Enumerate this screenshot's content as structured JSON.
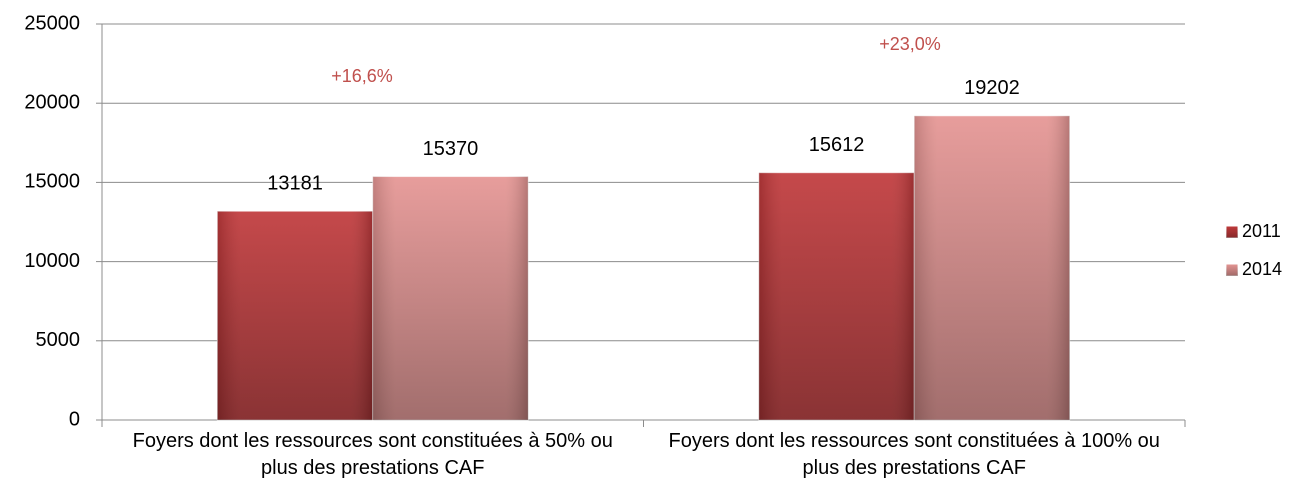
{
  "chart_data": {
    "type": "bar",
    "categories": [
      "Foyers dont les ressources sont constituées à 50% ou plus des prestations CAF",
      "Foyers dont les ressources sont constituées à 100% ou plus des prestations CAF"
    ],
    "series": [
      {
        "name": "2011",
        "color": "#c0393b",
        "values": [
          13181,
          15612
        ]
      },
      {
        "name": "2014",
        "color": "#e59593",
        "values": [
          15370,
          19202
        ]
      }
    ],
    "annotations": [
      "+16,6%",
      "+23,0%"
    ],
    "annotation_color": "#c0504d",
    "ylim": [
      0,
      25000
    ],
    "yticks": [
      0,
      5000,
      10000,
      15000,
      20000,
      25000
    ],
    "grid": true,
    "legend": "right"
  }
}
